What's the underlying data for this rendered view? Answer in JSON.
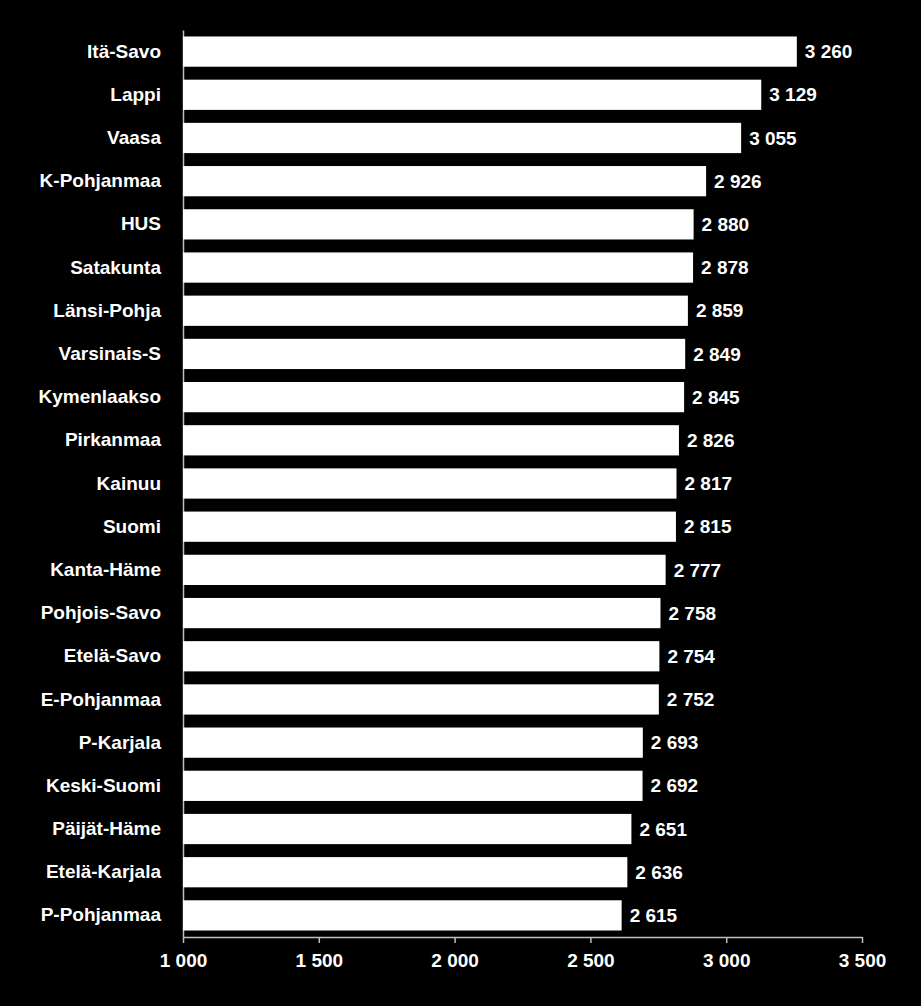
{
  "chart_data": {
    "type": "bar",
    "orientation": "horizontal",
    "data_labels": true,
    "grid": false,
    "color": "#ffffff",
    "categories": [
      "Itä-Savo",
      "Lappi",
      "Vaasa",
      "K-Pohjanmaa",
      "HUS",
      "Satakunta",
      "Länsi-Pohja",
      "Varsinais-S",
      "Kymenlaakso",
      "Pirkanmaa",
      "Kainuu",
      "Suomi",
      "Kanta-Häme",
      "Pohjois-Savo",
      "Etelä-Savo",
      "E-Pohjanmaa",
      "P-Karjala",
      "Keski-Suomi",
      "Päijät-Häme",
      "Etelä-Karjala",
      "P-Pohjanmaa"
    ],
    "values": [
      3260,
      3129,
      3055,
      2926,
      2880,
      2878,
      2859,
      2849,
      2845,
      2826,
      2817,
      2815,
      2777,
      2758,
      2754,
      2752,
      2693,
      2692,
      2651,
      2636,
      2615
    ],
    "value_labels": [
      "3 260",
      "3 129",
      "3 055",
      "2 926",
      "2 880",
      "2 878",
      "2 859",
      "2 849",
      "2 845",
      "2 826",
      "2 817",
      "2 815",
      "2 777",
      "2 758",
      "2 754",
      "2 752",
      "2 693",
      "2 692",
      "2 651",
      "2 636",
      "2 615"
    ],
    "xlim": [
      1000,
      3500
    ],
    "xticks": [
      {
        "value": 1000,
        "label": "1 000"
      },
      {
        "value": 1500,
        "label": "1 500"
      },
      {
        "value": 2000,
        "label": "2 000"
      },
      {
        "value": 2500,
        "label": "2 500"
      },
      {
        "value": 3000,
        "label": "3 000"
      },
      {
        "value": 3500,
        "label": "3 500"
      }
    ]
  }
}
